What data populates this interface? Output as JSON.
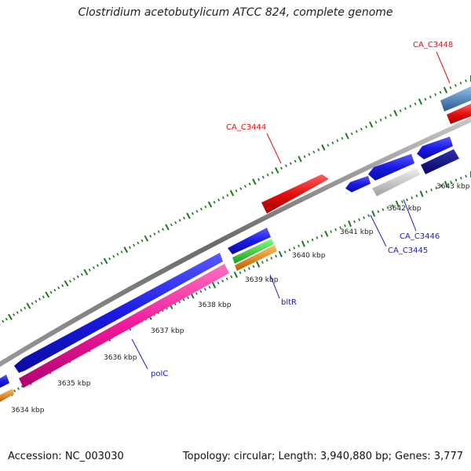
{
  "title": "Clostridium acetobutylicum ATCC 824, complete genome",
  "footer": {
    "accession": "Accession: NC_003030",
    "summary": "Topology: circular; Length: 3,940,880 bp; Genes: 3,777"
  },
  "ticks": [
    "3634 kbp",
    "3635 kbp",
    "3636 kbp",
    "3637 kbp",
    "3638 kbp",
    "3639 kbp",
    "3640 kbp",
    "3641 kbp",
    "3642 kbp",
    "3643 kbp"
  ],
  "gene_labels": {
    "polC": "polC",
    "bltR": "bltR",
    "CA_C3444": "CA_C3444",
    "CA_C3445": "CA_C3445",
    "CA_C3446": "CA_C3446",
    "CA_C3448": "CA_C3448"
  },
  "colors": {
    "backbone": "#777777",
    "tick": "#1a7a1a",
    "blue": "#1a1ae6",
    "navy": "#0a0a80",
    "red": "#e60f0f",
    "magenta": "#f0199a",
    "green": "#2ecc2e",
    "orange": "#f08c0a",
    "silver": "#c8c8c8",
    "steelblue": "#4a86c0",
    "label_blue": "#1a1acc",
    "label_red": "#e01010"
  }
}
